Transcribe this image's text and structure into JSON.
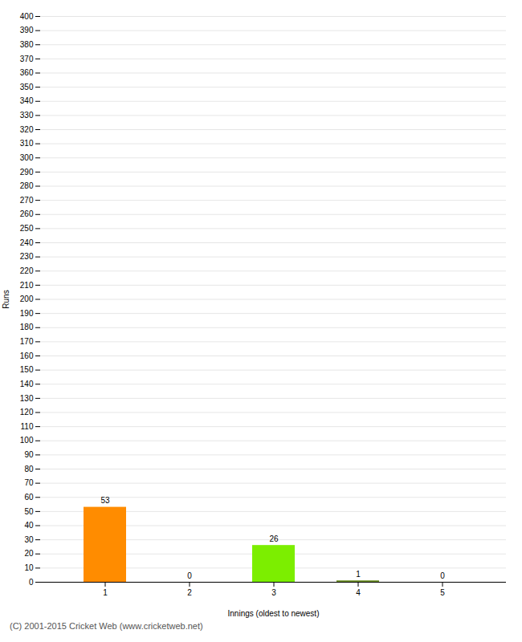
{
  "chart_data": {
    "type": "bar",
    "categories": [
      "1",
      "2",
      "3",
      "4",
      "5"
    ],
    "values": [
      53,
      0,
      26,
      1,
      0
    ],
    "colors": [
      "#ff8c00",
      "#aaaaaa",
      "#7cee00",
      "#6b8e23",
      "#aaaaaa"
    ],
    "xlabel": "Innings (oldest to newest)",
    "ylabel": "Runs",
    "ylim": [
      0,
      400
    ],
    "yticks": [
      0,
      10,
      20,
      30,
      40,
      50,
      60,
      70,
      80,
      90,
      100,
      110,
      120,
      130,
      140,
      150,
      160,
      170,
      180,
      190,
      200,
      210,
      220,
      230,
      240,
      250,
      260,
      270,
      280,
      290,
      300,
      310,
      320,
      330,
      340,
      350,
      360,
      370,
      380,
      390,
      400
    ],
    "grid": true,
    "data_labels": true,
    "annotations": [
      "(C) 2001-2015 Cricket Web (www.cricketweb.net)"
    ]
  }
}
